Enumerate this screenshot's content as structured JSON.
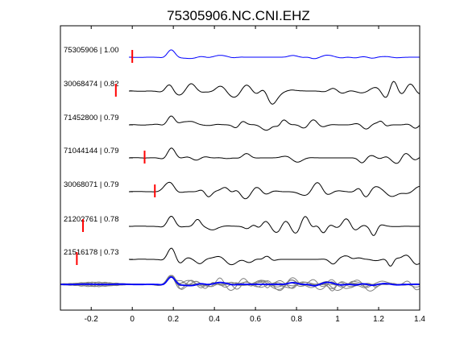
{
  "chart_data": {
    "type": "line",
    "title": "75305906.NC.CNI.EHZ",
    "xlim": [
      -0.35,
      1.4
    ],
    "x_ticks": [
      -0.2,
      0,
      0.2,
      0.4,
      0.6,
      0.8,
      1,
      1.2,
      1.4
    ],
    "x_tick_labels": [
      "-0.2",
      "0",
      "0.2",
      "0.4",
      "0.6",
      "0.8",
      "1",
      "1.2",
      "1.4"
    ],
    "grid": false,
    "traces": [
      {
        "label": "75305906 | 1.00",
        "color": "#0000ff",
        "pick_time": 0.0
      },
      {
        "label": "30068474 | 0.82",
        "color": "#000000",
        "pick_time": -0.08
      },
      {
        "label": "71452800 | 0.79",
        "color": "#000000",
        "pick_time": null
      },
      {
        "label": "71044144 | 0.79",
        "color": "#000000",
        "pick_time": 0.06
      },
      {
        "label": "30068071 | 0.79",
        "color": "#000000",
        "pick_time": 0.11
      },
      {
        "label": "21202761 | 0.78",
        "color": "#000000",
        "pick_time": -0.24
      },
      {
        "label": "21516178 | 0.73",
        "color": "#000000",
        "pick_time": -0.27
      }
    ],
    "stack_row": {
      "master_color": "#0000ff",
      "others_color": "#808080"
    },
    "pick_color": "#ff0000"
  }
}
